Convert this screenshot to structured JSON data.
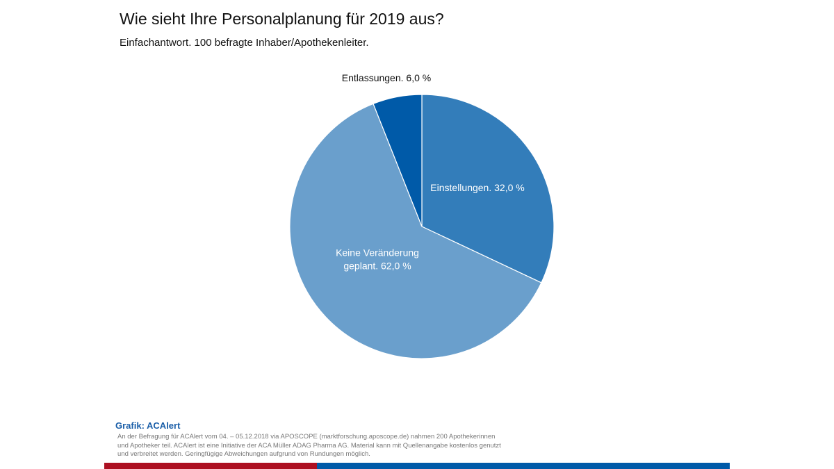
{
  "chart_data": {
    "type": "pie",
    "title": "Wie sieht Ihre Personalplanung für 2019 aus?",
    "subtitle": "Einfachantwort. 100 befragte Inhaber/Apothekenleiter.",
    "slices": [
      {
        "label": "Einstellungen. 32,0 %",
        "value": 32.0,
        "color": "#337dba"
      },
      {
        "label": "Keine Veränderung geplant. 62,0 %",
        "lines": [
          "Keine Veränderung",
          "geplant. 62,0 %"
        ],
        "value": 62.0,
        "color": "#6a9fcc"
      },
      {
        "label": "Entlassungen. 6,0 %",
        "value": 6.0,
        "color": "#005aa8"
      }
    ]
  },
  "footer": {
    "source": "Grafik: ACAlert",
    "note": "An der Befragung für ACAlert vom 04. – 05.12.2018 via APOSCOPE (marktforschung.aposcope.de) nahmen 200 Apothekerinnen und Apotheker teil. ACAlert ist eine Initiative der ACA Müller ADAG Pharma AG. Material kann mit Quellenangabe kostenlos genutzt und verbreitet werden. Geringfügige Abweichungen aufgrund von Rundungen möglich.",
    "colors": {
      "red": "#ad1022",
      "blue": "#005aa8"
    }
  }
}
